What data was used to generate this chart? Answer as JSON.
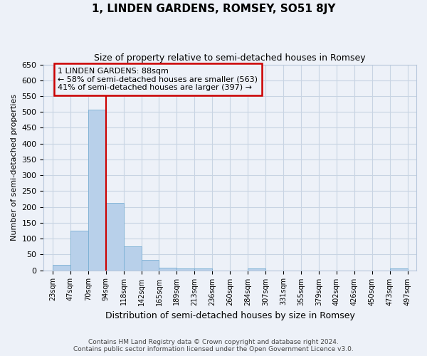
{
  "title": "1, LINDEN GARDENS, ROMSEY, SO51 8JY",
  "subtitle": "Size of property relative to semi-detached houses in Romsey",
  "xlabel": "Distribution of semi-detached houses by size in Romsey",
  "ylabel": "Number of semi-detached properties",
  "bin_labels": [
    "23sqm",
    "47sqm",
    "70sqm",
    "94sqm",
    "118sqm",
    "142sqm",
    "165sqm",
    "189sqm",
    "213sqm",
    "236sqm",
    "260sqm",
    "284sqm",
    "307sqm",
    "331sqm",
    "355sqm",
    "379sqm",
    "402sqm",
    "426sqm",
    "450sqm",
    "473sqm",
    "497sqm"
  ],
  "bar_values": [
    17,
    125,
    507,
    213,
    75,
    32,
    9,
    6,
    5,
    0,
    0,
    5,
    0,
    0,
    0,
    0,
    0,
    0,
    0,
    5,
    0
  ],
  "bin_edges": [
    23,
    47,
    70,
    94,
    118,
    142,
    165,
    189,
    213,
    236,
    260,
    284,
    307,
    331,
    355,
    379,
    402,
    426,
    450,
    473,
    497
  ],
  "bar_color": "#b8d0ea",
  "bar_edge_color": "#7aafd4",
  "property_line_x": 94,
  "property_name": "1 LINDEN GARDENS: 88sqm",
  "pct_smaller": 58,
  "count_smaller": 563,
  "pct_larger": 41,
  "count_larger": 397,
  "annotation_box_color": "#cc0000",
  "ylim": [
    0,
    650
  ],
  "yticks": [
    0,
    50,
    100,
    150,
    200,
    250,
    300,
    350,
    400,
    450,
    500,
    550,
    600,
    650
  ],
  "grid_color": "#c8d4e3",
  "bg_color": "#edf1f8",
  "footnote1": "Contains HM Land Registry data © Crown copyright and database right 2024.",
  "footnote2": "Contains public sector information licensed under the Open Government Licence v3.0."
}
